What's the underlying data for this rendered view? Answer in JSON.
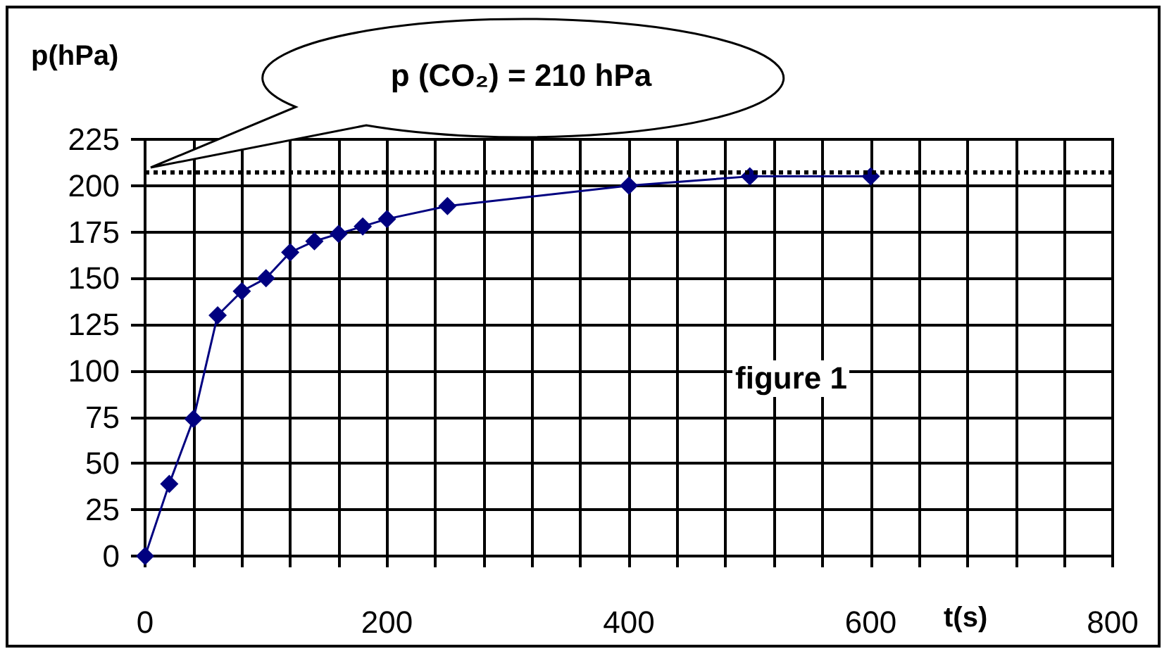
{
  "chart_data": {
    "type": "line",
    "xlabel": "t(s)",
    "ylabel": "p(hPa)",
    "annotations": [
      "p (CO₂) = 210 hPa",
      "figure 1"
    ],
    "x": [
      0,
      20,
      40,
      60,
      80,
      100,
      120,
      140,
      160,
      180,
      200,
      250,
      400,
      500,
      600
    ],
    "series": [
      {
        "color": "#000080",
        "values": [
          0,
          39,
          74,
          130,
          143,
          150,
          164,
          170,
          174,
          178,
          182,
          189,
          200,
          205,
          205
        ]
      }
    ],
    "xlim": [
      0,
      800
    ],
    "xticks": [
      0,
      {
        "value": 40,
        "label": null
      },
      {
        "value": 80,
        "label": null
      },
      {
        "value": 120,
        "label": null
      },
      {
        "value": 160,
        "label": null
      },
      200,
      {
        "value": 240,
        "label": null
      },
      {
        "value": 280,
        "label": null
      },
      {
        "value": 320,
        "label": null
      },
      {
        "value": 360,
        "label": null
      },
      400,
      {
        "value": 440,
        "label": null
      },
      {
        "value": 480,
        "label": null
      },
      {
        "value": 520,
        "label": null
      },
      {
        "value": 560,
        "label": null
      },
      600,
      {
        "value": 640,
        "label": null
      },
      {
        "value": 680,
        "label": null
      },
      {
        "value": 720,
        "label": null
      },
      {
        "value": 760,
        "label": null
      },
      800
    ],
    "ylim": [
      0,
      225
    ],
    "yticks": [
      0,
      25,
      50,
      75,
      100,
      125,
      150,
      175,
      200,
      225
    ],
    "ref_lines": [
      {
        "axis": "y",
        "value": 207,
        "color": "#000000",
        "line_style": "dotted"
      }
    ],
    "grid": true,
    "marker": "diamond",
    "line_style": "solid"
  }
}
